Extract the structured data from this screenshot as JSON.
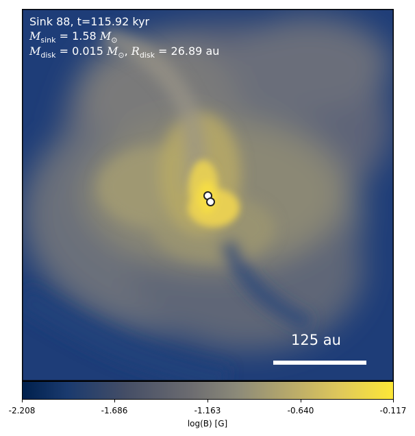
{
  "annotation": {
    "line1": "Sink 88, t=115.92 kyr",
    "msink_symbol": "M",
    "msink_sub": "sink",
    "msink_value": " = 1.58 ",
    "msun": "M",
    "msun_sub": "⊙",
    "mdisk_symbol": "M",
    "mdisk_sub": "disk",
    "mdisk_value": " = 0.015 ",
    "rdisk_symbol": "R",
    "rdisk_sub": "disk",
    "rdisk_value": " = 26.89 au"
  },
  "scale_bar": {
    "label": "125 au"
  },
  "colorbar": {
    "label": "log(B) [G]",
    "ticks": [
      "-2.208",
      "-1.686",
      "-1.163",
      "-0.640",
      "-0.117"
    ]
  },
  "colors": {
    "low": "#00204d",
    "mid": "#7c7b78",
    "high": "#fde737"
  }
}
